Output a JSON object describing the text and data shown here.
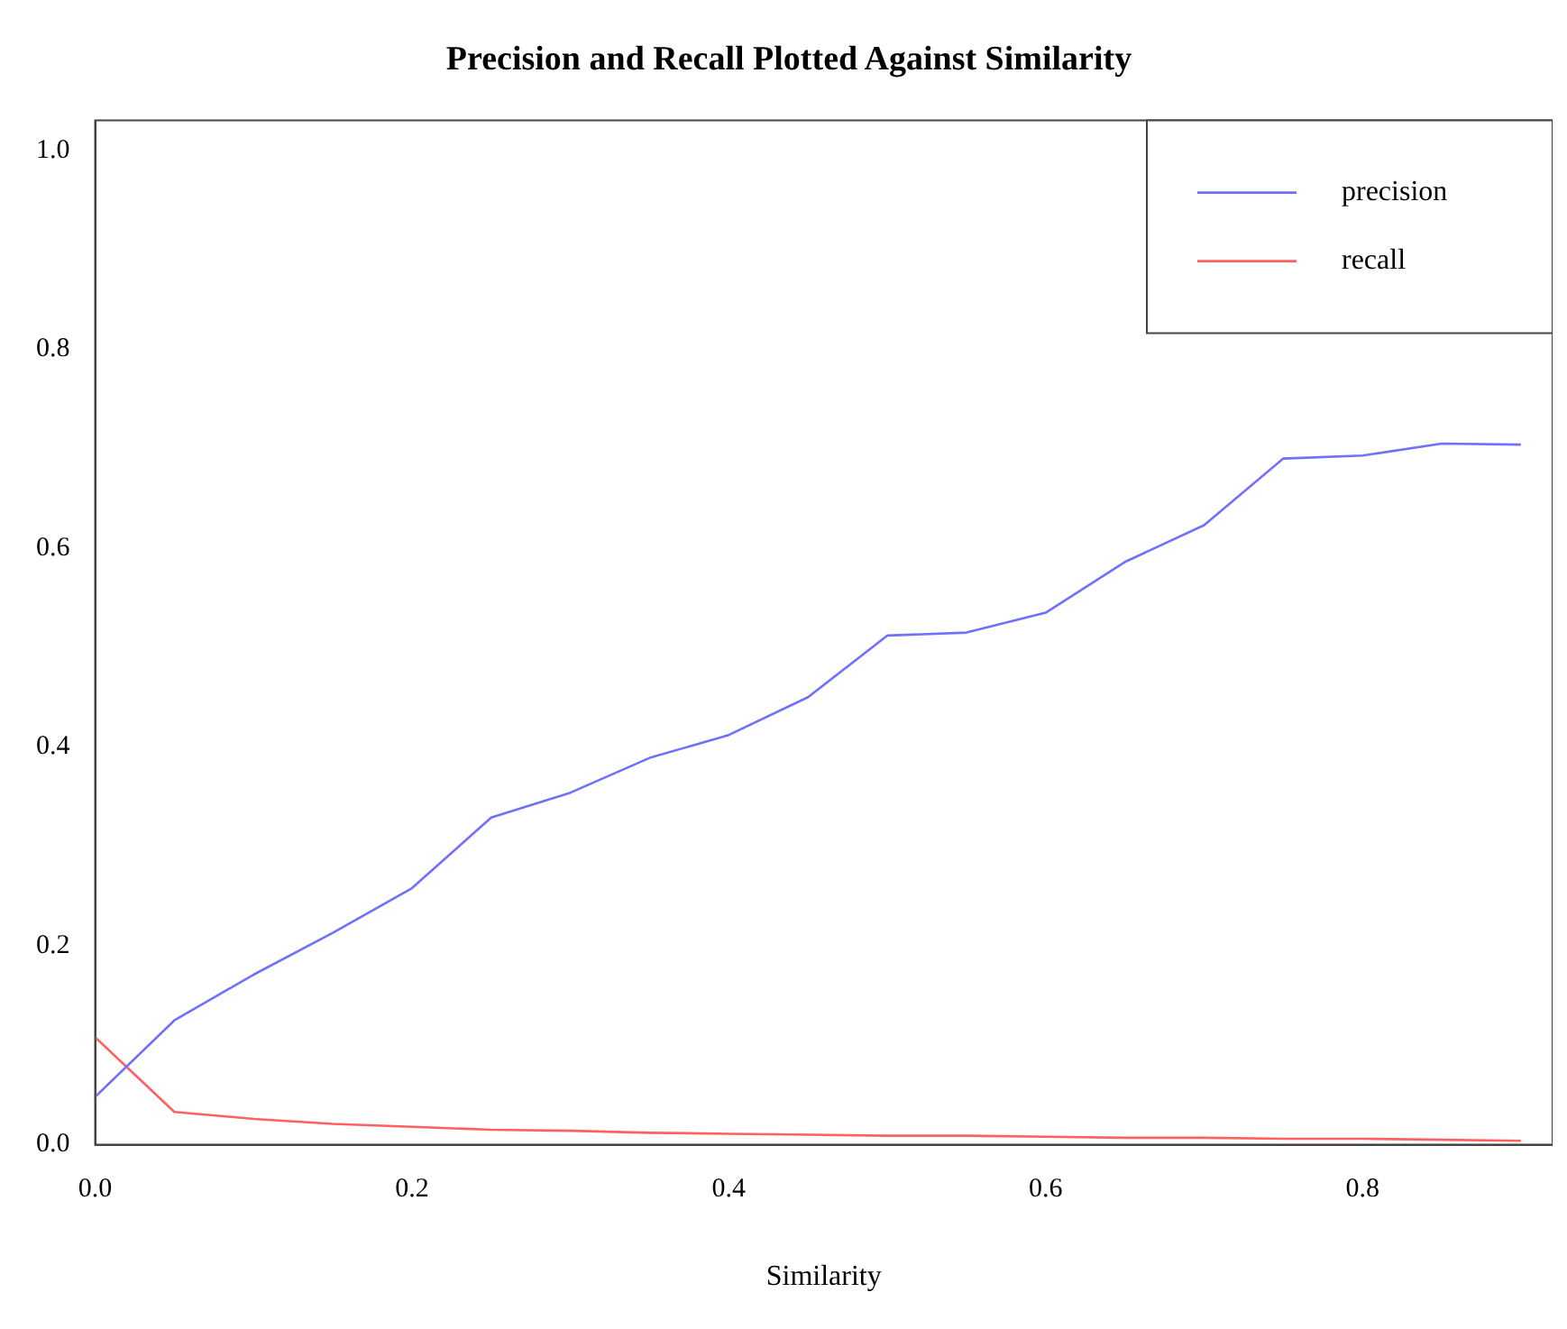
{
  "chart_data": {
    "type": "line",
    "title": "Precision and Recall Plotted Against Similarity",
    "xlabel": "Similarity",
    "x": [
      0,
      0.05,
      0.1,
      0.15,
      0.2,
      0.25,
      0.3,
      0.35,
      0.4,
      0.45,
      0.5,
      0.55,
      0.6,
      0.65,
      0.7,
      0.75,
      0.8,
      0.85,
      0.9
    ],
    "series": [
      {
        "name": "precision",
        "color": "#7070ff",
        "values": [
          0.048,
          0.125,
          0.171,
          0.213,
          0.258,
          0.329,
          0.354,
          0.389,
          0.412,
          0.45,
          0.512,
          0.515,
          0.535,
          0.586,
          0.623,
          0.69,
          0.693,
          0.705,
          0.704
        ]
      },
      {
        "name": "recall",
        "color": "#ff6060",
        "values": [
          0.108,
          0.033,
          0.026,
          0.021,
          0.018,
          0.015,
          0.014,
          0.012,
          0.011,
          0.01,
          0.009,
          0.009,
          0.008,
          0.007,
          0.007,
          0.006,
          0.006,
          0.005,
          0.004
        ]
      }
    ],
    "xlim": [
      0,
      0.92
    ],
    "ylim": [
      0,
      1.03
    ],
    "xticks": [
      {
        "value": 0,
        "label": "0.0"
      },
      0.2,
      0.4,
      0.6,
      0.8
    ],
    "yticks": [
      {
        "value": 0,
        "label": "0.0"
      },
      0.2,
      0.4,
      0.6,
      0.8,
      {
        "value": 1,
        "label": "1.0"
      }
    ],
    "legend": "top right",
    "grid": false,
    "marker": "none",
    "line_style": "solid"
  }
}
